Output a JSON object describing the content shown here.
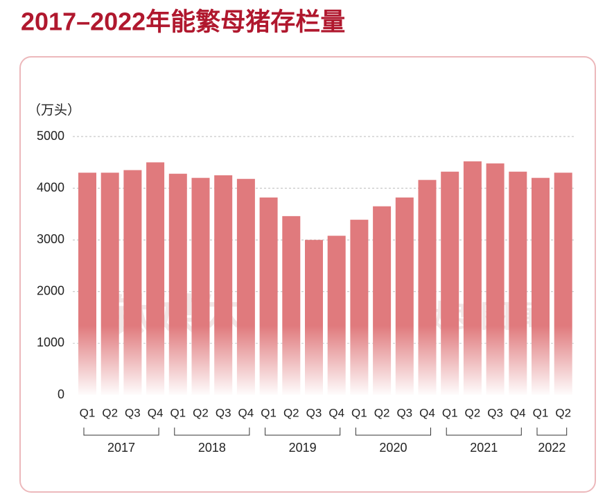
{
  "chart_data": {
    "type": "bar",
    "title": "2017–2022年能繁母猪存栏量",
    "y_label": "（万头）",
    "categories": [
      "Q1",
      "Q2",
      "Q3",
      "Q4",
      "Q1",
      "Q2",
      "Q3",
      "Q4",
      "Q1",
      "Q2",
      "Q3",
      "Q4",
      "Q1",
      "Q2",
      "Q3",
      "Q4",
      "Q1",
      "Q2",
      "Q3",
      "Q4",
      "Q1",
      "Q2"
    ],
    "groups": [
      "2017",
      "2018",
      "2019",
      "2020",
      "2021",
      "2022"
    ],
    "values": [
      4300,
      4300,
      4350,
      4500,
      4280,
      4200,
      4250,
      4180,
      3820,
      3460,
      3000,
      3080,
      3390,
      3650,
      3820,
      4160,
      4320,
      4520,
      4480,
      4320,
      4200,
      4300
    ],
    "color": "#e07a7d",
    "ylim": [
      0,
      5000
    ],
    "yticks": [
      0,
      1000,
      2000,
      3000,
      4000,
      5000
    ],
    "grid": true,
    "watermarks": [
      "钛媒体",
      "钛度图闻"
    ]
  }
}
